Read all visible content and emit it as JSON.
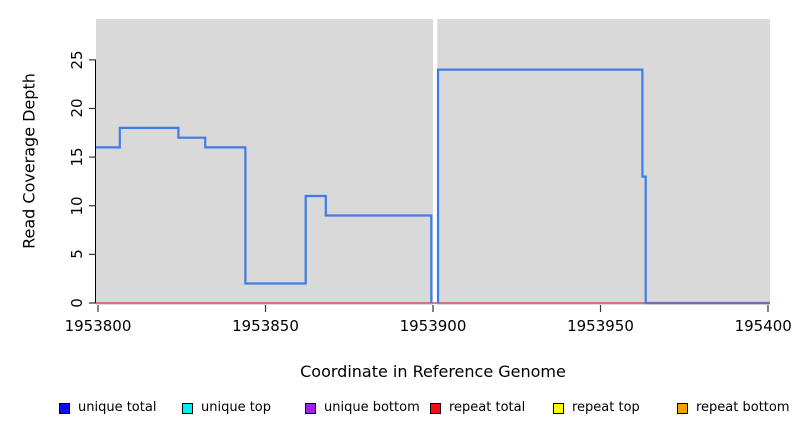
{
  "chart_data": {
    "type": "line",
    "title": "",
    "xlabel": "Coordinate in Reference Genome",
    "ylabel": "Read Coverage Depth",
    "xlim": [
      1953799.4,
      1954000.6
    ],
    "ylim": [
      0,
      29.2
    ],
    "x_ticks": [
      1953800,
      1953850,
      1953900,
      1953950,
      1954000
    ],
    "x_tick_labels": [
      "1953800",
      "1953850",
      "1953900",
      "1953950",
      "1954000"
    ],
    "y_ticks": [
      0,
      5,
      10,
      15,
      20,
      25
    ],
    "y_tick_labels": [
      "0",
      "5",
      "10",
      "15",
      "20",
      "25"
    ],
    "grid": false,
    "plot_bg_color": "#D9D9D9",
    "no_data_gap_x": [
      1953900.0,
      1953901.3
    ],
    "series": [
      {
        "name": "repeat total",
        "color": "#CF5065",
        "line_width": 1.6,
        "segments": [
          [
            [
              1953799.4,
              0
            ],
            [
              1954000.6,
              0
            ]
          ]
        ]
      },
      {
        "name": "unique total",
        "color": "#3E7DE7",
        "line_width": 2.2,
        "segments": [
          [
            [
              1953799.4,
              16
            ],
            [
              1953806.5,
              16
            ],
            [
              1953806.5,
              18
            ],
            [
              1953824,
              18
            ],
            [
              1953824,
              17
            ],
            [
              1953832,
              17
            ],
            [
              1953832,
              16
            ],
            [
              1953844,
              16
            ],
            [
              1953844,
              2
            ],
            [
              1953862,
              2
            ],
            [
              1953862,
              11
            ],
            [
              1953868,
              11
            ],
            [
              1953868,
              9
            ],
            [
              1953899.5,
              9
            ],
            [
              1953899.5,
              0
            ]
          ],
          [
            [
              1953901.5,
              0
            ],
            [
              1953901.5,
              24
            ],
            [
              1953962.5,
              24
            ],
            [
              1953962.5,
              13
            ],
            [
              1953963.5,
              13
            ],
            [
              1953963.5,
              0
            ],
            [
              1954000.6,
              0
            ]
          ]
        ]
      }
    ],
    "overlap_tint": "rgba(207,80,101,0.35)",
    "legend_position": "bottom",
    "legend": [
      {
        "label": "unique total",
        "color": "#0D0DF0"
      },
      {
        "label": "unique top",
        "color": "#00EFEF"
      },
      {
        "label": "unique bottom",
        "color": "#A020F0"
      },
      {
        "label": "repeat total",
        "color": "#EE1111"
      },
      {
        "label": "repeat top",
        "color": "#FFFF00"
      },
      {
        "label": "repeat bottom",
        "color": "#F5A000"
      }
    ]
  }
}
